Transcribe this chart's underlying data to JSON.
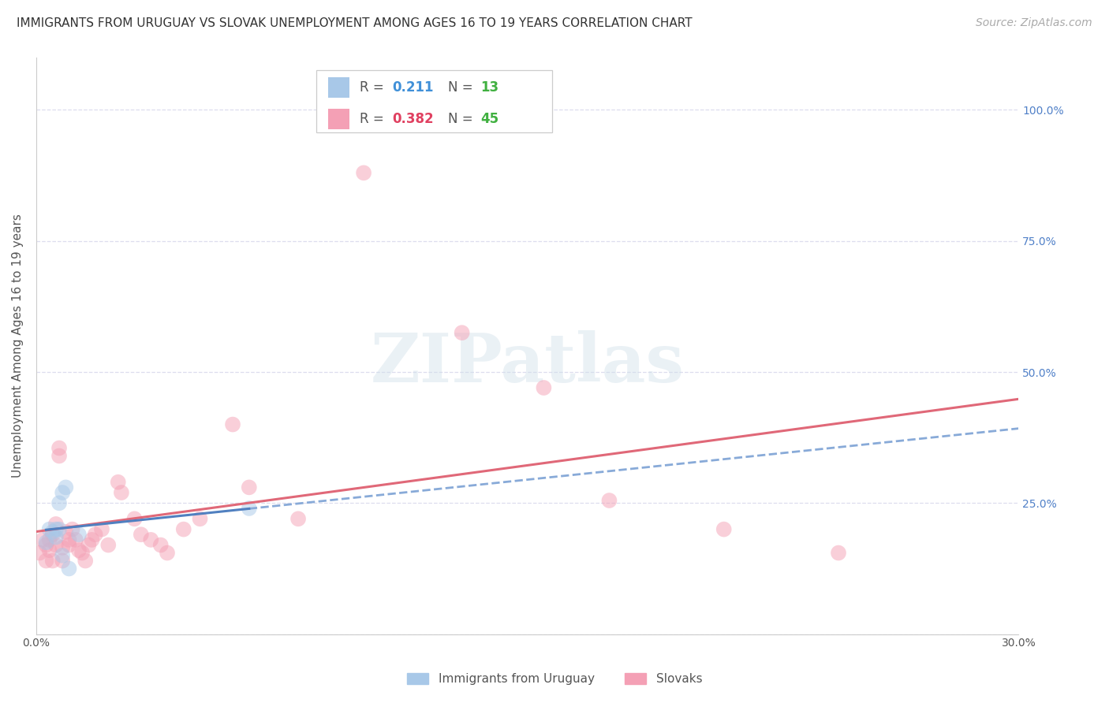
{
  "title": "IMMIGRANTS FROM URUGUAY VS SLOVAK UNEMPLOYMENT AMONG AGES 16 TO 19 YEARS CORRELATION CHART",
  "source": "Source: ZipAtlas.com",
  "ylabel": "Unemployment Among Ages 16 to 19 years",
  "xlim": [
    0.0,
    0.3
  ],
  "ylim": [
    0.0,
    1.1
  ],
  "x_ticks": [
    0.0,
    0.05,
    0.1,
    0.15,
    0.2,
    0.25,
    0.3
  ],
  "x_tick_labels": [
    "0.0%",
    "",
    "",
    "",
    "",
    "",
    "30.0%"
  ],
  "y_ticks": [
    0.0,
    0.25,
    0.5,
    0.75,
    1.0
  ],
  "y_tick_labels_right": [
    "",
    "25.0%",
    "50.0%",
    "75.0%",
    "100.0%"
  ],
  "color_uruguay": "#a8c8e8",
  "color_slovak": "#f4a0b5",
  "color_line_uruguay": "#5080c0",
  "color_line_uruguay_dash": "#88aad8",
  "color_line_slovak": "#e06878",
  "color_r_uruguay": "#4090d8",
  "color_r_slovak": "#e04060",
  "color_n": "#40b040",
  "watermark_text": "ZIPatlas",
  "background_color": "#ffffff",
  "grid_color": "#ddddee",
  "scatter_size": 200,
  "scatter_alpha": 0.5,
  "uruguay_x": [
    0.003,
    0.004,
    0.005,
    0.006,
    0.006,
    0.007,
    0.007,
    0.008,
    0.008,
    0.009,
    0.01,
    0.013,
    0.065
  ],
  "uruguay_y": [
    0.175,
    0.2,
    0.195,
    0.185,
    0.2,
    0.25,
    0.2,
    0.15,
    0.27,
    0.28,
    0.125,
    0.19,
    0.24
  ],
  "slovak_x": [
    0.001,
    0.002,
    0.003,
    0.003,
    0.004,
    0.005,
    0.005,
    0.006,
    0.006,
    0.007,
    0.007,
    0.008,
    0.008,
    0.009,
    0.01,
    0.01,
    0.011,
    0.012,
    0.013,
    0.014,
    0.015,
    0.016,
    0.017,
    0.018,
    0.02,
    0.022,
    0.025,
    0.026,
    0.03,
    0.032,
    0.035,
    0.038,
    0.04,
    0.045,
    0.05,
    0.06,
    0.065,
    0.08,
    0.1,
    0.13,
    0.155,
    0.175,
    0.21,
    0.245,
    0.004
  ],
  "slovak_y": [
    0.155,
    0.18,
    0.17,
    0.14,
    0.16,
    0.19,
    0.14,
    0.21,
    0.17,
    0.355,
    0.34,
    0.165,
    0.14,
    0.195,
    0.18,
    0.17,
    0.2,
    0.18,
    0.16,
    0.155,
    0.14,
    0.17,
    0.18,
    0.19,
    0.2,
    0.17,
    0.29,
    0.27,
    0.22,
    0.19,
    0.18,
    0.17,
    0.155,
    0.2,
    0.22,
    0.4,
    0.28,
    0.22,
    0.88,
    0.575,
    0.47,
    0.255,
    0.2,
    0.155,
    0.18
  ],
  "title_fontsize": 11,
  "axis_label_fontsize": 11,
  "tick_fontsize": 10,
  "legend_fontsize": 12,
  "source_fontsize": 10,
  "right_tick_color": "#5080c8"
}
